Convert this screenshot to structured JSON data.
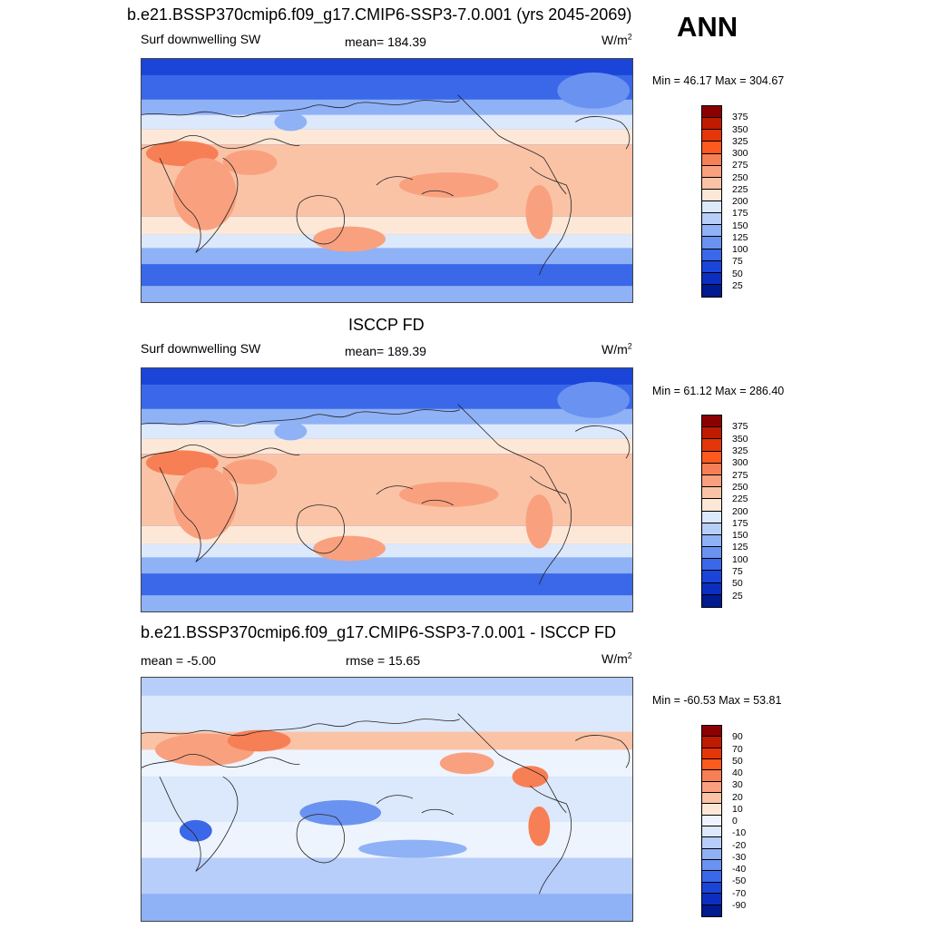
{
  "title": "b.e21.BSSP370cmip6.f09_g17.CMIP6-SSP3-7.0.001 (yrs 2045-2069)",
  "season": "ANN",
  "panels": [
    {
      "title": "",
      "left_label": "Surf downwelling SW",
      "center_label": "mean= 184.39",
      "unit": "W/m",
      "unit_exp": "2",
      "minmax": "Min =  46.17 Max = 304.67",
      "colorbar_labels": [
        "375",
        "350",
        "325",
        "300",
        "275",
        "250",
        "225",
        "200",
        "175",
        "150",
        "125",
        "100",
        "75",
        "50",
        "25"
      ]
    },
    {
      "title": "ISCCP FD",
      "left_label": "Surf downwelling SW",
      "center_label": "mean= 189.39",
      "unit": "W/m",
      "unit_exp": "2",
      "minmax": "Min =  61.12 Max = 286.40",
      "colorbar_labels": [
        "375",
        "350",
        "325",
        "300",
        "275",
        "250",
        "225",
        "200",
        "175",
        "150",
        "125",
        "100",
        "75",
        "50",
        "25"
      ]
    },
    {
      "title": "b.e21.BSSP370cmip6.f09_g17.CMIP6-SSP3-7.0.001 - ISCCP FD",
      "left_label": "mean =  -5.00",
      "center_label": "rmse =  15.65",
      "unit": "W/m",
      "unit_exp": "2",
      "minmax": "Min = -60.53 Max =  53.81",
      "colorbar_labels": [
        "90",
        "70",
        "50",
        "40",
        "30",
        "20",
        "10",
        "0",
        "-10",
        "-20",
        "-30",
        "-40",
        "-50",
        "-70",
        "-90"
      ]
    }
  ],
  "colors": {
    "abs_scale": [
      "#8b0000",
      "#c01a00",
      "#e5360a",
      "#ff5a1e",
      "#f77f55",
      "#f9a17f",
      "#fbc3a6",
      "#fde8d8",
      "#dce8fb",
      "#b7cefa",
      "#8fb1f6",
      "#6a92f1",
      "#3a68e8",
      "#1a45d8",
      "#0c2ec0",
      "#001a8f"
    ],
    "diff_scale": [
      "#8b0000",
      "#c01a00",
      "#e5360a",
      "#ff5a1e",
      "#f77f55",
      "#f9a17f",
      "#fbc3a6",
      "#fde8d8",
      "#eef4fd",
      "#dce8fb",
      "#b7cefa",
      "#8fb1f6",
      "#6a92f1",
      "#3a68e8",
      "#1a45d8",
      "#0c2ec0",
      "#001a8f"
    ]
  }
}
